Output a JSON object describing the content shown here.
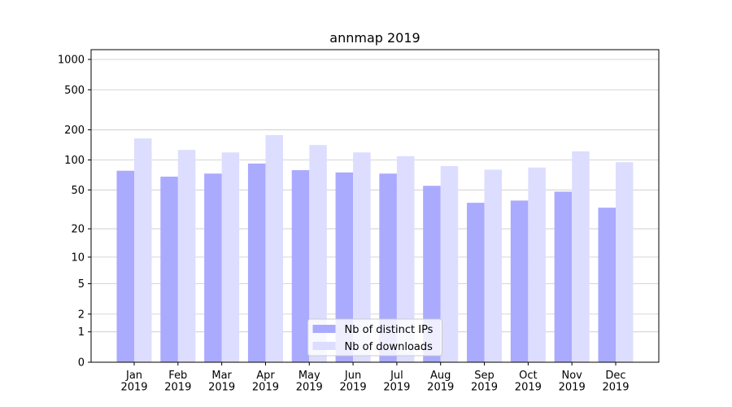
{
  "chart_data": {
    "type": "bar",
    "title": "annmap 2019",
    "categories": [
      "Jan\n2019",
      "Feb\n2019",
      "Mar\n2019",
      "Apr\n2019",
      "May\n2019",
      "Jun\n2019",
      "Jul\n2019",
      "Aug\n2019",
      "Sep\n2019",
      "Oct\n2019",
      "Nov\n2019",
      "Dec\n2019"
    ],
    "series": [
      {
        "name": "Nb of distinct IPs",
        "color": "#aaaaff",
        "values": [
          78,
          68,
          73,
          92,
          79,
          75,
          73,
          55,
          37,
          39,
          48,
          33
        ]
      },
      {
        "name": "Nb of downloads",
        "color": "#ddddff",
        "values": [
          164,
          126,
          119,
          177,
          141,
          119,
          109,
          87,
          80,
          84,
          122,
          95
        ]
      }
    ],
    "yscale": "log1p",
    "ylim": [
      0,
      1250
    ],
    "yticks": [
      0,
      1,
      2,
      5,
      10,
      20,
      50,
      100,
      200,
      500,
      1000
    ],
    "grid": true,
    "legend": "lower center"
  }
}
